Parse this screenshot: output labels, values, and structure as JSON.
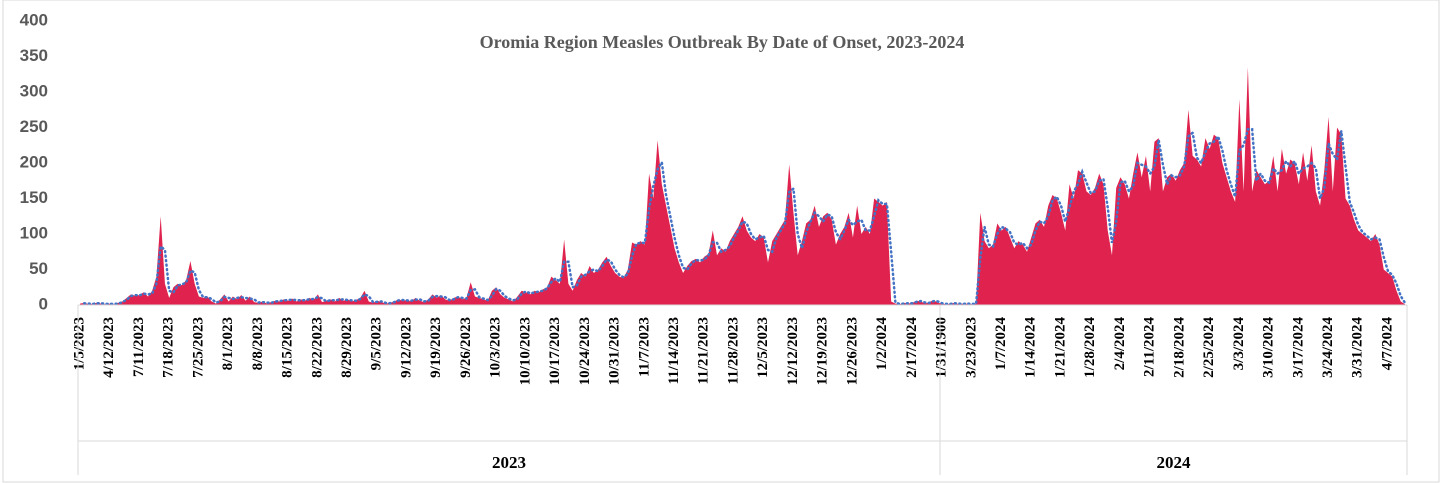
{
  "chart_data": {
    "type": "area",
    "title": "Oromia Region Measles Outbreak By Date of Onset, 2023-2024",
    "categories": [
      "1/5/2023",
      null,
      null,
      null,
      null,
      null,
      null,
      "4/12/2023",
      null,
      null,
      null,
      null,
      null,
      null,
      "7/11/2023",
      null,
      null,
      null,
      null,
      null,
      null,
      "7/18/2023",
      null,
      null,
      null,
      null,
      null,
      null,
      "7/25/2023",
      null,
      null,
      null,
      null,
      null,
      null,
      "8/1/2023",
      null,
      null,
      null,
      null,
      null,
      null,
      "8/8/2023",
      null,
      null,
      null,
      null,
      null,
      null,
      "8/15/2023",
      null,
      null,
      null,
      null,
      null,
      null,
      "8/22/2023",
      null,
      null,
      null,
      null,
      null,
      null,
      "8/29/2023",
      null,
      null,
      null,
      null,
      null,
      null,
      "9/5/2023",
      null,
      null,
      null,
      null,
      null,
      null,
      "9/12/2023",
      null,
      null,
      null,
      null,
      null,
      null,
      "9/19/2023",
      null,
      null,
      null,
      null,
      null,
      null,
      "9/26/2023",
      null,
      null,
      null,
      null,
      null,
      null,
      "10/3/2023",
      null,
      null,
      null,
      null,
      null,
      null,
      "10/10/2023",
      null,
      null,
      null,
      null,
      null,
      null,
      "10/17/2023",
      null,
      null,
      null,
      null,
      null,
      null,
      "10/24/2023",
      null,
      null,
      null,
      null,
      null,
      null,
      "10/31/2023",
      null,
      null,
      null,
      null,
      null,
      null,
      "11/7/2023",
      null,
      null,
      null,
      null,
      null,
      null,
      "11/14/2023",
      null,
      null,
      null,
      null,
      null,
      null,
      "11/21/2023",
      null,
      null,
      null,
      null,
      null,
      null,
      "11/28/2023",
      null,
      null,
      null,
      null,
      null,
      null,
      "12/5/2023",
      null,
      null,
      null,
      null,
      null,
      null,
      "12/12/2023",
      null,
      null,
      null,
      null,
      null,
      null,
      "12/19/2023",
      null,
      null,
      null,
      null,
      null,
      null,
      "12/26/2023",
      null,
      null,
      null,
      null,
      null,
      null,
      "1/2/2024",
      null,
      null,
      null,
      null,
      null,
      null,
      "2/17/2024",
      null,
      null,
      null,
      null,
      null,
      null,
      "1/31/1900",
      null,
      null,
      null,
      null,
      null,
      null,
      "3/23/2023",
      null,
      null,
      null,
      null,
      null,
      null,
      "1/7/2024",
      null,
      null,
      null,
      null,
      null,
      null,
      "1/14/2024",
      null,
      null,
      null,
      null,
      null,
      null,
      "1/21/2024",
      null,
      null,
      null,
      null,
      null,
      null,
      "1/28/2024",
      null,
      null,
      null,
      null,
      null,
      null,
      "2/4/2024",
      null,
      null,
      null,
      null,
      null,
      null,
      "2/11/2024",
      null,
      null,
      null,
      null,
      null,
      null,
      "2/18/2024",
      null,
      null,
      null,
      null,
      null,
      null,
      "2/25/2024",
      null,
      null,
      null,
      null,
      null,
      null,
      "3/3/2024",
      null,
      null,
      null,
      null,
      null,
      null,
      "3/10/2024",
      null,
      null,
      null,
      null,
      null,
      null,
      "3/17/2024",
      null,
      null,
      null,
      null,
      null,
      null,
      "3/24/2024",
      null,
      null,
      null,
      null,
      null,
      null,
      "3/31/2024",
      null,
      null,
      null,
      null,
      null,
      null,
      "4/7/2024",
      null,
      null,
      null,
      null
    ],
    "groups": [
      {
        "name": "2023",
        "count": 203
      },
      {
        "name": "2024",
        "count": 110
      }
    ],
    "series": [
      {
        "color": "#e0234e",
        "values": [
          2,
          3,
          1,
          2,
          3,
          2,
          1,
          2,
          1,
          3,
          5,
          10,
          15,
          13,
          14,
          18,
          12,
          20,
          40,
          125,
          30,
          10,
          25,
          30,
          28,
          35,
          62,
          30,
          12,
          10,
          12,
          5,
          2,
          8,
          15,
          5,
          12,
          8,
          14,
          6,
          12,
          4,
          3,
          5,
          2,
          4,
          6,
          5,
          8,
          6,
          9,
          5,
          8,
          6,
          10,
          7,
          15,
          4,
          6,
          8,
          5,
          10,
          6,
          8,
          5,
          7,
          10,
          20,
          5,
          3,
          6,
          4,
          2,
          3,
          5,
          8,
          6,
          7,
          5,
          10,
          6,
          4,
          8,
          15,
          10,
          14,
          8,
          6,
          10,
          12,
          8,
          10,
          32,
          12,
          10,
          8,
          6,
          20,
          25,
          15,
          10,
          8,
          5,
          12,
          20,
          18,
          15,
          20,
          18,
          22,
          25,
          40,
          35,
          30,
          92,
          30,
          20,
          35,
          45,
          40,
          55,
          45,
          50,
          60,
          68,
          55,
          45,
          40,
          38,
          50,
          88,
          85,
          90,
          85,
          185,
          150,
          232,
          170,
          140,
          110,
          80,
          60,
          45,
          55,
          62,
          65,
          60,
          68,
          72,
          105,
          70,
          80,
          75,
          90,
          100,
          110,
          125,
          105,
          95,
          90,
          100,
          95,
          60,
          90,
          100,
          110,
          120,
          198,
          130,
          70,
          90,
          115,
          120,
          140,
          110,
          125,
          130,
          120,
          85,
          100,
          110,
          130,
          95,
          140,
          100,
          110,
          100,
          150,
          145,
          140,
          145,
          5,
          2,
          1,
          3,
          2,
          3,
          6,
          5,
          2,
          4,
          7,
          3,
          2,
          1,
          2,
          3,
          1,
          2,
          2,
          1,
          2,
          130,
          90,
          80,
          85,
          115,
          105,
          110,
          95,
          80,
          90,
          85,
          75,
          95,
          115,
          120,
          110,
          140,
          155,
          150,
          130,
          105,
          170,
          150,
          190,
          185,
          160,
          155,
          165,
          185,
          170,
          105,
          70,
          165,
          180,
          170,
          150,
          185,
          215,
          180,
          210,
          160,
          230,
          235,
          160,
          180,
          185,
          175,
          190,
          200,
          275,
          210,
          205,
          195,
          235,
          220,
          240,
          235,
          200,
          180,
          160,
          145,
          290,
          160,
          335,
          160,
          190,
          180,
          170,
          175,
          210,
          160,
          220,
          185,
          205,
          200,
          170,
          215,
          175,
          225,
          160,
          140,
          190,
          265,
          160,
          250,
          240,
          150,
          140,
          120,
          105,
          100,
          95,
          90,
          100,
          85,
          50,
          45,
          40,
          20,
          5,
          1
        ]
      }
    ],
    "trendline": {
      "period": 2,
      "color": "#4472c4"
    },
    "ylim": [
      0,
      400
    ],
    "yticks": [
      0,
      50,
      100,
      150,
      200,
      250,
      300,
      350,
      400
    ],
    "grid": false
  }
}
